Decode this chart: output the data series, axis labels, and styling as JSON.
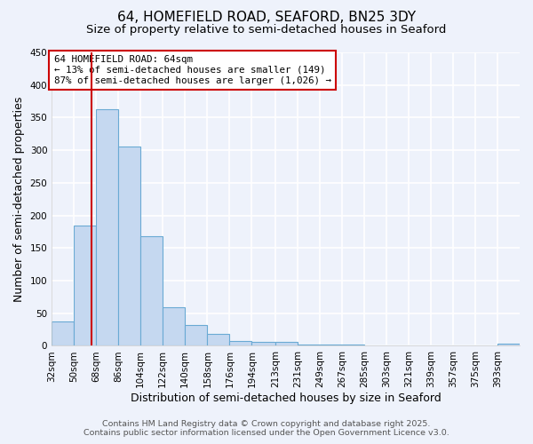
{
  "title_line1": "64, HOMEFIELD ROAD, SEAFORD, BN25 3DY",
  "title_line2": "Size of property relative to semi-detached houses in Seaford",
  "xlabel": "Distribution of semi-detached houses by size in Seaford",
  "ylabel": "Number of semi-detached properties",
  "bin_labels": [
    "32sqm",
    "50sqm",
    "68sqm",
    "86sqm",
    "104sqm",
    "122sqm",
    "140sqm",
    "158sqm",
    "176sqm",
    "194sqm",
    "213sqm",
    "231sqm",
    "249sqm",
    "267sqm",
    "285sqm",
    "303sqm",
    "321sqm",
    "339sqm",
    "357sqm",
    "375sqm",
    "393sqm"
  ],
  "bin_edges": [
    32,
    50,
    68,
    86,
    104,
    122,
    140,
    158,
    176,
    194,
    213,
    231,
    249,
    267,
    285,
    303,
    321,
    339,
    357,
    375,
    393
  ],
  "bar_heights": [
    37,
    184,
    363,
    306,
    168,
    59,
    32,
    18,
    8,
    6,
    6,
    2,
    2,
    2,
    1,
    0,
    0,
    1,
    0,
    0,
    3
  ],
  "bar_color": "#c5d8f0",
  "bar_edge_color": "#6aaad4",
  "property_value": 64,
  "property_line_color": "#cc0000",
  "annotation_text": "64 HOMEFIELD ROAD: 64sqm\n← 13% of semi-detached houses are smaller (149)\n87% of semi-detached houses are larger (1,026) →",
  "annotation_box_color": "#ffffff",
  "annotation_box_edge_color": "#cc0000",
  "ylim": [
    0,
    450
  ],
  "yticks": [
    0,
    50,
    100,
    150,
    200,
    250,
    300,
    350,
    400,
    450
  ],
  "footer_line1": "Contains HM Land Registry data © Crown copyright and database right 2025.",
  "footer_line2": "Contains public sector information licensed under the Open Government Licence v3.0.",
  "bg_color": "#eef2fb",
  "grid_color": "#ffffff",
  "title_fontsize": 11,
  "subtitle_fontsize": 9.5,
  "axis_label_fontsize": 9,
  "tick_fontsize": 7.5,
  "annotation_fontsize": 7.8,
  "footer_fontsize": 6.8
}
